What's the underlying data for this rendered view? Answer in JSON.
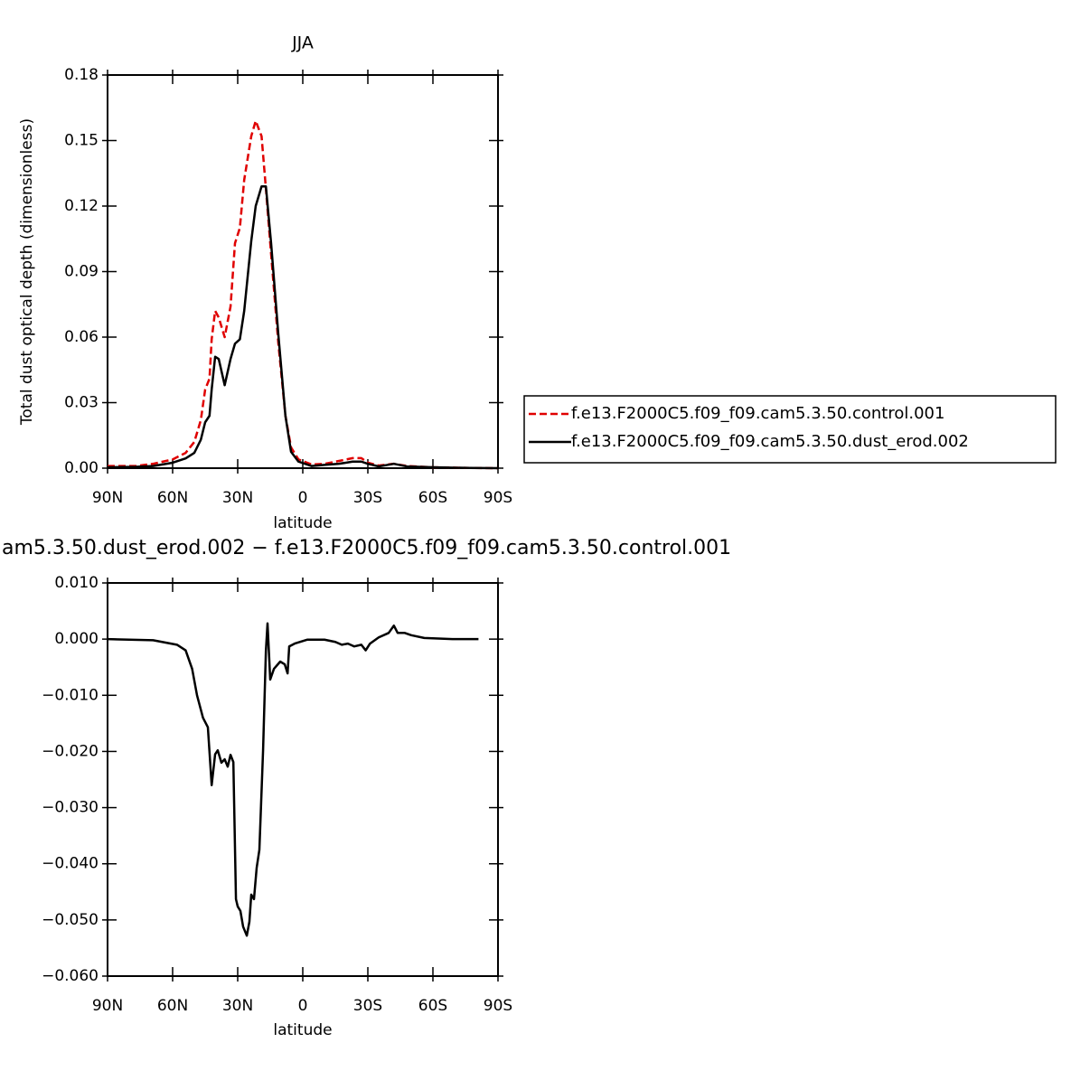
{
  "chart_data": [
    {
      "type": "line",
      "title": "JJA",
      "ylabel": "Total dust optical depth (dimensionless)",
      "xlabel": "latitude",
      "x": [
        90,
        77,
        69,
        60,
        54,
        50,
        47,
        45,
        43,
        42,
        40.4,
        38.75,
        36,
        33.3,
        31.25,
        29,
        27,
        23.75,
        21.7,
        19,
        17,
        14.6,
        11.25,
        8,
        5.4,
        2,
        -4,
        -10,
        -16.7,
        -23,
        -27,
        -30,
        -35,
        -42,
        -48,
        -60,
        -77,
        -90
      ],
      "series": [
        {
          "name": "f.e13.F2000C5.f09_f09.cam5.3.50.control.001",
          "color": "#e00000",
          "dash": true,
          "values": [
            0.001,
            0.001,
            0.002,
            0.004,
            0.007,
            0.012,
            0.022,
            0.036,
            0.041,
            0.059,
            0.072,
            0.069,
            0.06,
            0.074,
            0.103,
            0.11,
            0.132,
            0.152,
            0.159,
            0.152,
            0.128,
            0.098,
            0.057,
            0.024,
            0.0095,
            0.004,
            0.0017,
            0.002,
            0.0033,
            0.0046,
            0.0046,
            0.0025,
            0.0012,
            0.002,
            0.001,
            0.0004,
            0.0001,
            0
          ]
        },
        {
          "name": "f.e13.F2000C5.f09_f09.cam5.3.50.dust_erod.002",
          "color": "#000000",
          "dash": false,
          "values": [
            0.0004,
            0.0006,
            0.001,
            0.0025,
            0.0045,
            0.007,
            0.013,
            0.021,
            0.024,
            0.036,
            0.051,
            0.05,
            0.038,
            0.05,
            0.057,
            0.059,
            0.072,
            0.104,
            0.12,
            0.129,
            0.129,
            0.103,
            0.061,
            0.024,
            0.0075,
            0.003,
            0.001,
            0.0015,
            0.002,
            0.003,
            0.003,
            0.002,
            0.0008,
            0.002,
            0.0008,
            0.0004,
            0.0001,
            0
          ]
        }
      ],
      "xlim": [
        90,
        -90
      ],
      "xticks": [
        {
          "value": 90,
          "label": "90N"
        },
        {
          "value": 60,
          "label": "60N"
        },
        {
          "value": 30,
          "label": "30N"
        },
        0,
        {
          "value": -30,
          "label": "30S"
        },
        {
          "value": -60,
          "label": "60S"
        },
        {
          "value": -90,
          "label": "90S"
        }
      ],
      "ylim": [
        0,
        0.18
      ],
      "yticks": [
        {
          "value": 0,
          "label": "0.00"
        },
        0.03,
        0.06,
        0.09,
        0.12,
        0.15,
        0.18
      ],
      "legend": "right"
    },
    {
      "type": "line",
      "title": "am5.3.50.dust_erod.002 − f.e13.F2000C5.f09_f09.cam5.3.50.control.001",
      "xlabel": "latitude",
      "x": [
        90,
        69,
        58,
        54,
        51,
        48.75,
        46,
        43.75,
        42,
        40.4,
        39.2,
        37.5,
        36,
        34.6,
        33.3,
        32,
        30.8,
        30,
        28.75,
        27.5,
        25.8,
        24.6,
        23.75,
        22.5,
        21.25,
        20,
        18.3,
        17,
        16.25,
        15,
        13.3,
        10.4,
        8.3,
        7,
        6.25,
        3.75,
        -2,
        -10,
        -15,
        -18,
        -20.8,
        -23.75,
        -27,
        -29,
        -31,
        -35,
        -39.6,
        -42,
        -43.75,
        -47,
        -50,
        -56,
        -69,
        -81
      ],
      "values": [
        0,
        -0.0002,
        -0.001,
        -0.002,
        -0.0053,
        -0.01,
        -0.014,
        -0.0157,
        -0.026,
        -0.0205,
        -0.0198,
        -0.022,
        -0.0214,
        -0.0227,
        -0.0206,
        -0.0219,
        -0.0463,
        -0.0476,
        -0.0484,
        -0.0512,
        -0.0528,
        -0.0503,
        -0.0455,
        -0.0463,
        -0.0407,
        -0.0375,
        -0.0198,
        -0.0021,
        0.0028,
        -0.0072,
        -0.0053,
        -0.004,
        -0.0045,
        -0.0061,
        -0.0013,
        -0.0008,
        -0.0001,
        -0.0001,
        -0.0005,
        -0.001,
        -0.0008,
        -0.0013,
        -0.001,
        -0.002,
        -0.0008,
        0.0003,
        0.0011,
        0.0024,
        0.0011,
        0.0011,
        0.0007,
        0.0002,
        0,
        0
      ],
      "color": "#000000",
      "xlim": [
        90,
        -90
      ],
      "xticks": [
        {
          "value": 90,
          "label": "90N"
        },
        {
          "value": 60,
          "label": "60N"
        },
        {
          "value": 30,
          "label": "30N"
        },
        0,
        {
          "value": -30,
          "label": "30S"
        },
        {
          "value": -60,
          "label": "60S"
        },
        {
          "value": -90,
          "label": "90S"
        }
      ],
      "ylim": [
        -0.06,
        0.01
      ],
      "yticks": [
        {
          "value": 0.01,
          "label": "0.010"
        },
        {
          "value": 0,
          "label": "0.000"
        },
        {
          "value": -0.01,
          "label": "−0.010"
        },
        {
          "value": -0.02,
          "label": "−0.020"
        },
        {
          "value": -0.03,
          "label": "−0.030"
        },
        {
          "value": -0.04,
          "label": "−0.040"
        },
        {
          "value": -0.05,
          "label": "−0.050"
        },
        {
          "value": -0.06,
          "label": "−0.060"
        }
      ]
    }
  ]
}
